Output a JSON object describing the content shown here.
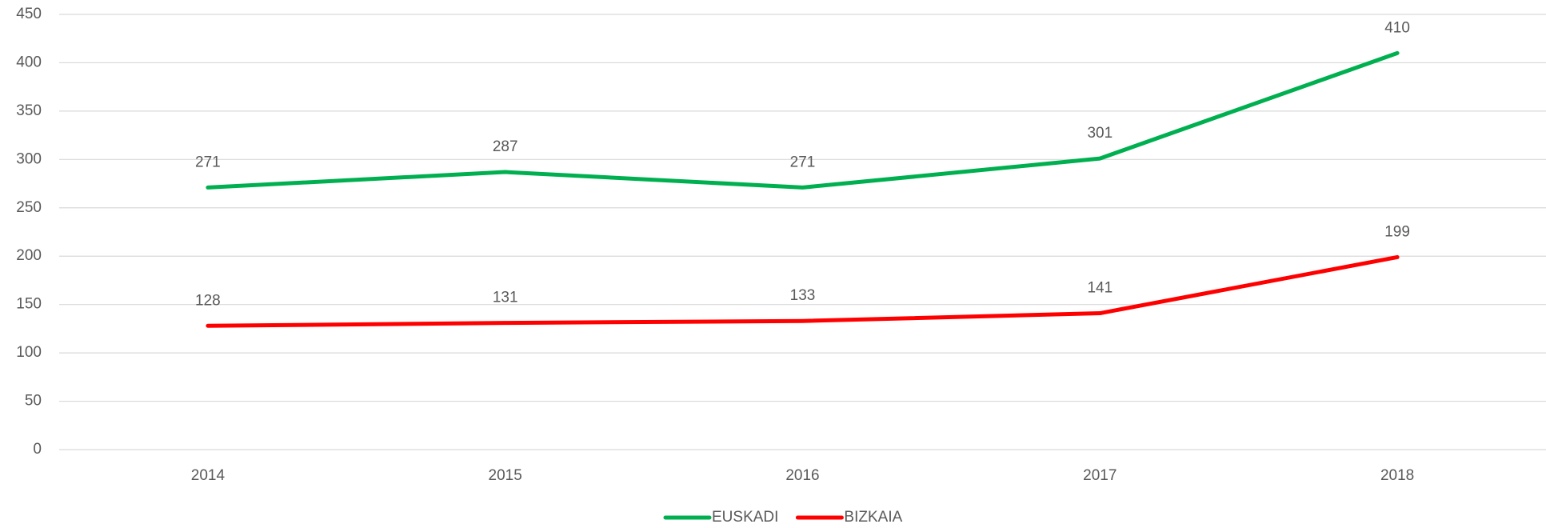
{
  "chart_data": {
    "type": "line",
    "categories": [
      "2014",
      "2015",
      "2016",
      "2017",
      "2018"
    ],
    "series": [
      {
        "name": "EUSKADI",
        "color": "#00b050",
        "values": [
          271,
          287,
          271,
          301,
          410
        ]
      },
      {
        "name": "BIZKAIA",
        "color": "#ff0000",
        "values": [
          128,
          131,
          133,
          141,
          199
        ]
      }
    ],
    "ylim": [
      0,
      450
    ],
    "yticks": [
      0,
      50,
      100,
      150,
      200,
      250,
      300,
      350,
      400,
      450
    ],
    "grid": true,
    "legend": "bottom"
  }
}
